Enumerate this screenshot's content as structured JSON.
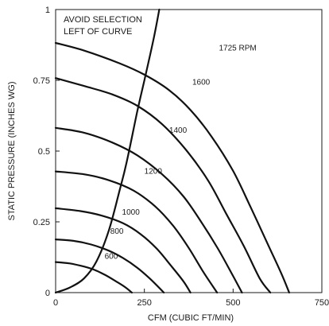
{
  "chart_data": {
    "type": "line",
    "title": "",
    "xlabel": "CFM (CUBIC FT/MIN)",
    "ylabel": "STATIC PRESSURE (INCHES WG)",
    "xlim": [
      0,
      750
    ],
    "ylim": [
      0,
      1
    ],
    "x_ticks": [
      0,
      250,
      500,
      750
    ],
    "y_ticks": [
      0,
      0.25,
      0.5,
      0.75,
      1
    ],
    "x_tick_labels": [
      "0",
      "250",
      "500",
      "750"
    ],
    "y_tick_labels": [
      "0",
      "0.25",
      "0.5",
      "0.75",
      "1"
    ],
    "grid": false,
    "legend": "none",
    "annotation": [
      "AVOID SELECTION",
      "LEFT OF CURVE"
    ],
    "series": [
      {
        "label": "600",
        "points": [
          [
            0,
            0.108
          ],
          [
            40,
            0.103
          ],
          [
            80,
            0.092
          ],
          [
            110,
            0.08
          ],
          [
            140,
            0.062
          ],
          [
            170,
            0.04
          ],
          [
            195,
            0.02
          ],
          [
            215,
            0
          ]
        ]
      },
      {
        "label": "800",
        "points": [
          [
            0,
            0.188
          ],
          [
            50,
            0.183
          ],
          [
            100,
            0.17
          ],
          [
            150,
            0.148
          ],
          [
            190,
            0.122
          ],
          [
            230,
            0.088
          ],
          [
            265,
            0.05
          ],
          [
            305,
            0
          ]
        ]
      },
      {
        "label": "1000",
        "points": [
          [
            0,
            0.298
          ],
          [
            70,
            0.288
          ],
          [
            130,
            0.272
          ],
          [
            190,
            0.245
          ],
          [
            240,
            0.206
          ],
          [
            285,
            0.155
          ],
          [
            325,
            0.095
          ],
          [
            360,
            0.04
          ],
          [
            380,
            0
          ]
        ]
      },
      {
        "label": "1200",
        "points": [
          [
            0,
            0.428
          ],
          [
            80,
            0.418
          ],
          [
            150,
            0.397
          ],
          [
            220,
            0.36
          ],
          [
            280,
            0.305
          ],
          [
            330,
            0.238
          ],
          [
            375,
            0.158
          ],
          [
            415,
            0.075
          ],
          [
            455,
            0
          ]
        ]
      },
      {
        "label": "1400",
        "points": [
          [
            0,
            0.582
          ],
          [
            80,
            0.565
          ],
          [
            160,
            0.53
          ],
          [
            230,
            0.485
          ],
          [
            300,
            0.418
          ],
          [
            360,
            0.34
          ],
          [
            410,
            0.25
          ],
          [
            455,
            0.16
          ],
          [
            495,
            0.07
          ],
          [
            525,
            0
          ]
        ]
      },
      {
        "label": "1600",
        "points": [
          [
            0,
            0.758
          ],
          [
            80,
            0.73
          ],
          [
            160,
            0.7
          ],
          [
            230,
            0.66
          ],
          [
            300,
            0.595
          ],
          [
            370,
            0.5
          ],
          [
            430,
            0.395
          ],
          [
            480,
            0.28
          ],
          [
            530,
            0.165
          ],
          [
            575,
            0.05
          ],
          [
            605,
            0
          ]
        ]
      },
      {
        "label": "1725 RPM",
        "points": [
          [
            0,
            0.882
          ],
          [
            80,
            0.855
          ],
          [
            180,
            0.81
          ],
          [
            250,
            0.77
          ],
          [
            320,
            0.715
          ],
          [
            380,
            0.645
          ],
          [
            440,
            0.55
          ],
          [
            500,
            0.43
          ],
          [
            550,
            0.3
          ],
          [
            600,
            0.165
          ],
          [
            635,
            0.07
          ],
          [
            658,
            0
          ]
        ]
      },
      {
        "label": "avoid-boundary",
        "points": [
          [
            0,
            0
          ],
          [
            40,
            0.018
          ],
          [
            80,
            0.05
          ],
          [
            115,
            0.11
          ],
          [
            150,
            0.22
          ],
          [
            180,
            0.36
          ],
          [
            200,
            0.46
          ],
          [
            230,
            0.64
          ],
          [
            250,
            0.75
          ],
          [
            275,
            0.89
          ],
          [
            292,
            1
          ]
        ]
      }
    ]
  }
}
